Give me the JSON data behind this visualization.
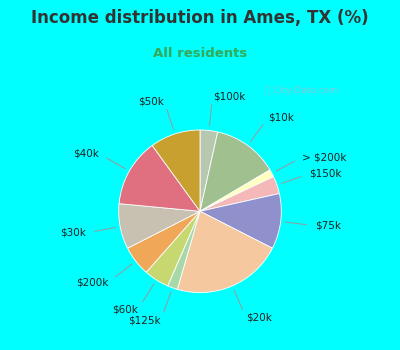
{
  "title": "Income distribution in Ames, TX (%)",
  "subtitle": "All residents",
  "bg_color": "#00FFFF",
  "chart_bg": "#e0f0e8",
  "watermark": "ⓘ City-Data.com",
  "labels": [
    "$100k",
    "$10k",
    "> $200k",
    "$150k",
    "$75k",
    "$20k",
    "$125k",
    "$60k",
    "$200k",
    "$30k",
    "$40k",
    "$50k"
  ],
  "values": [
    3.5,
    13.0,
    1.5,
    3.5,
    11.0,
    22.0,
    2.0,
    5.0,
    6.0,
    9.0,
    13.5,
    10.0
  ],
  "colors": [
    "#b8c8b0",
    "#a0c090",
    "#ffffc0",
    "#f5b8b8",
    "#9090cc",
    "#f5c8a0",
    "#a8d8a8",
    "#c8d870",
    "#f0a858",
    "#c8c0b0",
    "#e07080",
    "#c8a030"
  ],
  "startangle": 90,
  "title_color": "#333333",
  "subtitle_color": "#33aa55",
  "title_fontsize": 12,
  "subtitle_fontsize": 9.5,
  "label_fontsize": 7.5
}
